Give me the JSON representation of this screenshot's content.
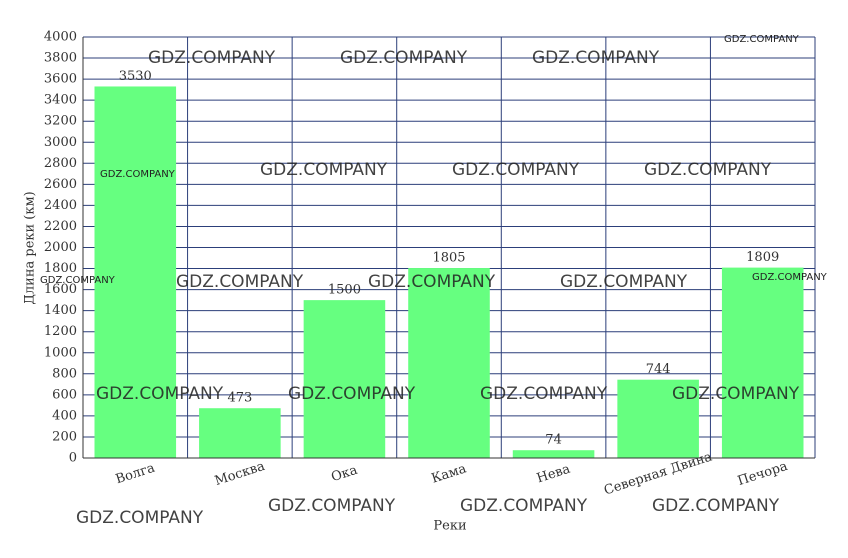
{
  "chart_data": {
    "type": "bar",
    "categories": [
      "Волга",
      "Москва",
      "Ока",
      "Кама",
      "Нева",
      "Северная Двина",
      "Печора"
    ],
    "values": [
      3530,
      473,
      1500,
      1805,
      74,
      744,
      1809
    ],
    "color": "#66ff80",
    "ylim": [
      0,
      4000
    ],
    "yticks": [
      0,
      200,
      400,
      600,
      800,
      1000,
      1200,
      1400,
      1600,
      1800,
      2000,
      2200,
      2400,
      2600,
      2800,
      3000,
      3200,
      3400,
      3600,
      3800,
      4000
    ],
    "y_label": "Длина реки (км)",
    "x_label": "Реки",
    "grid": true,
    "watermark": "GDZ.COMPANY"
  }
}
